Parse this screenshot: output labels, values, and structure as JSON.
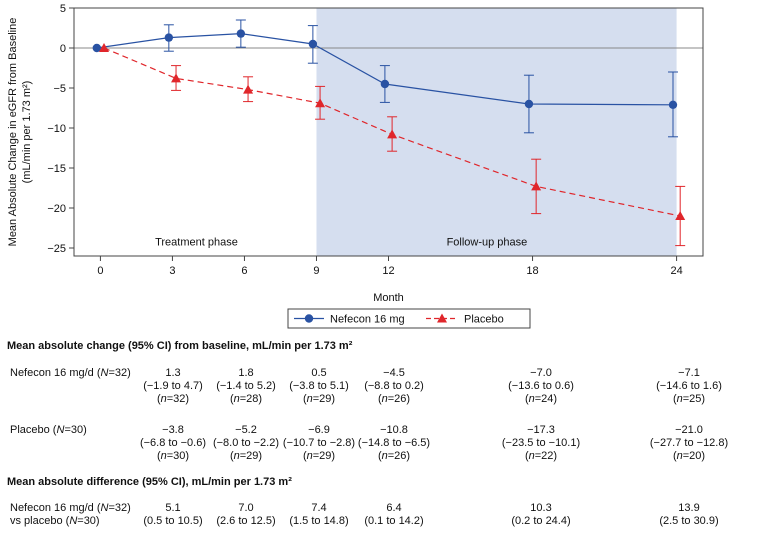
{
  "chart_data": {
    "type": "line",
    "ylabel": "Mean Absolute Change in eGFR from Baseline",
    "ylabel2": "(mL/min per 1.73 m²)",
    "xlabel": "Month",
    "x": [
      0,
      3,
      6,
      9,
      12,
      18,
      24
    ],
    "xticks": [
      "0",
      "3",
      "6",
      "9",
      "12",
      "18",
      "24"
    ],
    "yticks": [
      "5",
      "0",
      "−5",
      "−10",
      "−15",
      "−20",
      "−25"
    ],
    "ylim": [
      -26,
      5
    ],
    "grid": false,
    "legend": "bottom-center",
    "phase_labels": [
      "Treatment phase",
      "Follow-up phase"
    ],
    "followup_shading_months": [
      9,
      24
    ],
    "series": [
      {
        "name": "Nefecon 16 mg",
        "color": "#2952a3",
        "marker": "circle",
        "linestyle": "solid",
        "values": [
          0,
          1.3,
          1.8,
          0.5,
          -4.5,
          -7.0,
          -7.1
        ],
        "err_lo": [
          0,
          -0.4,
          0.1,
          -1.9,
          -6.8,
          -10.6,
          -11.1
        ],
        "err_hi": [
          0,
          2.9,
          3.5,
          2.8,
          -2.2,
          -3.4,
          -3.0
        ]
      },
      {
        "name": "Placebo",
        "color": "#e0262b",
        "marker": "triangle",
        "linestyle": "dashed",
        "values": [
          0,
          -3.8,
          -5.2,
          -6.9,
          -10.8,
          -17.3,
          -21.0
        ],
        "err_lo": [
          0,
          -5.3,
          -6.7,
          -8.9,
          -12.9,
          -20.7,
          -24.7
        ],
        "err_hi": [
          0,
          -2.2,
          -3.6,
          -4.8,
          -8.6,
          -13.9,
          -17.3
        ]
      }
    ]
  },
  "table": {
    "heading1": "Mean absolute change (95% CI) from baseline, mL/min per 1.73 m²",
    "heading2": "Mean absolute difference (95% CI), mL/min per 1.73 m²",
    "nefecon_label": "Nefecon 16 mg/d (N=32)",
    "placebo_label": "Placebo (N=30)",
    "diff_label1": "Nefecon 16 mg/d (N=32)",
    "diff_label2": "vs placebo (N=30)",
    "nefecon": [
      {
        "mean": "1.3",
        "ci": "(−1.9 to 4.7)",
        "n": "(n=32)"
      },
      {
        "mean": "1.8",
        "ci": "(−1.4 to 5.2)",
        "n": "(n=28)"
      },
      {
        "mean": "0.5",
        "ci": "(−3.8 to 5.1)",
        "n": "(n=29)"
      },
      {
        "mean": "−4.5",
        "ci": "(−8.8 to 0.2)",
        "n": "(n=26)"
      },
      {
        "mean": "−7.0",
        "ci": "(−13.6 to 0.6)",
        "n": "(n=24)"
      },
      {
        "mean": "−7.1",
        "ci": "(−14.6 to 1.6)",
        "n": "(n=25)"
      }
    ],
    "placebo": [
      {
        "mean": "−3.8",
        "ci": "(−6.8 to −0.6)",
        "n": "(n=30)"
      },
      {
        "mean": "−5.2",
        "ci": "(−8.0 to −2.2)",
        "n": "(n=29)"
      },
      {
        "mean": "−6.9",
        "ci": "(−10.7 to −2.8)",
        "n": "(n=29)"
      },
      {
        "mean": "−10.8",
        "ci": "(−14.8 to −6.5)",
        "n": "(n=26)"
      },
      {
        "mean": "−17.3",
        "ci": "(−23.5 to −10.1)",
        "n": "(n=22)"
      },
      {
        "mean": "−21.0",
        "ci": "(−27.7 to −12.8)",
        "n": "(n=20)"
      }
    ],
    "difference": [
      {
        "mean": "5.1",
        "ci": "(0.5 to 10.5)"
      },
      {
        "mean": "7.0",
        "ci": "(2.6 to 12.5)"
      },
      {
        "mean": "7.4",
        "ci": "(1.5 to 14.8)"
      },
      {
        "mean": "6.4",
        "ci": "(0.1 to 14.2)"
      },
      {
        "mean": "10.3",
        "ci": "(0.2 to 24.4)"
      },
      {
        "mean": "13.9",
        "ci": "(2.5 to 30.9)"
      }
    ]
  }
}
